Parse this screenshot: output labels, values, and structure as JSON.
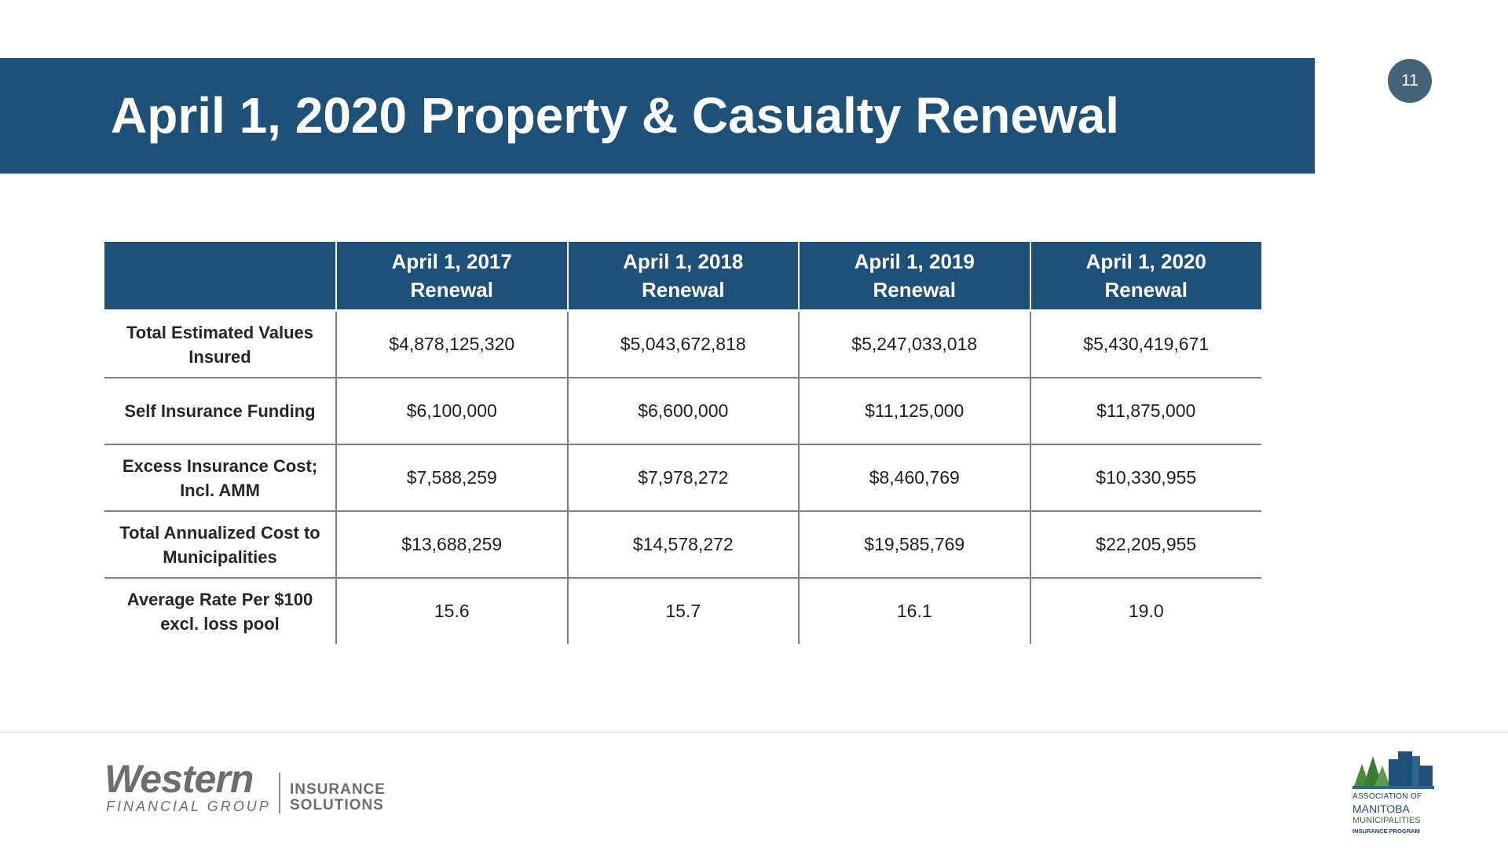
{
  "header": {
    "title": "April 1, 2020 Property & Casualty Renewal",
    "page_number": "11"
  },
  "table": {
    "columns": [
      {
        "line1": "",
        "line2": ""
      },
      {
        "line1": "April 1, 2017",
        "line2": "Renewal"
      },
      {
        "line1": "April 1, 2018",
        "line2": "Renewal"
      },
      {
        "line1": "April 1, 2019",
        "line2": "Renewal"
      },
      {
        "line1": "April 1, 2020",
        "line2": "Renewal"
      }
    ],
    "rows": [
      {
        "line1": "Total Estimated Values",
        "line2": "Insured",
        "values": [
          "$4,878,125,320",
          "$5,043,672,818",
          "$5,247,033,018",
          "$5,430,419,671"
        ]
      },
      {
        "line1": "Self Insurance Funding",
        "line2": "",
        "values": [
          "$6,100,000",
          "$6,600,000",
          "$11,125,000",
          "$11,875,000"
        ]
      },
      {
        "line1": "Excess Insurance Cost;",
        "line2": "Incl. AMM",
        "values": [
          "$7,588,259",
          "$7,978,272",
          "$8,460,769",
          "$10,330,955"
        ]
      },
      {
        "line1": "Total Annualized Cost to",
        "line2": "Municipalities",
        "values": [
          "$13,688,259",
          "$14,578,272",
          "$19,585,769",
          "$22,205,955"
        ]
      },
      {
        "line1": "Average Rate Per $100",
        "line2": "excl. loss pool",
        "values": [
          "15.6",
          "15.7",
          "16.1",
          "19.0"
        ]
      }
    ]
  },
  "footer": {
    "western_logo": {
      "word": "Western",
      "tagline": "FINANCIAL GROUP",
      "product_line1": "INSURANCE",
      "product_line2": "SOLUTIONS"
    },
    "amm_logo": {
      "line1": "ASSOCIATION OF",
      "line2": "MANITOBA",
      "line3": "MUNICIPALITIES",
      "line4": "INSURANCE PROGRAM"
    }
  },
  "colors": {
    "header_blue": "#1f5078",
    "page_badge": "#456378",
    "grid_lines": "#7f7f7f",
    "logo_gray": "#6d6d6d",
    "amm_green": "#4b8a3d"
  }
}
